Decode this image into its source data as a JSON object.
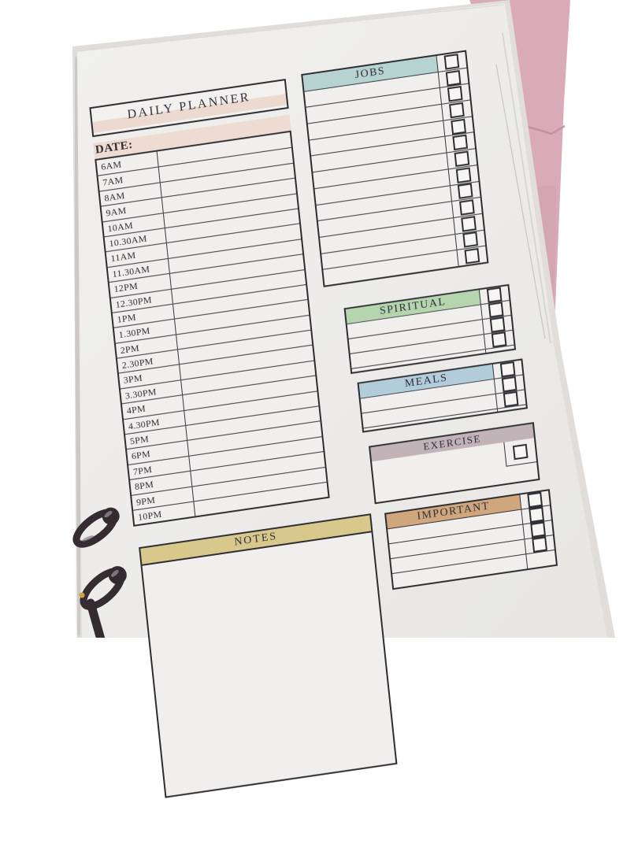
{
  "photo": {
    "background_color": "#ffffff",
    "paper_color": "#edecea",
    "binder_cover_color": "#d9abb8",
    "ring_color": "#332b30"
  },
  "page": {
    "title": "DAILY PLANNER",
    "title_band_color": "#ecd9d0",
    "date_label": "DATE:",
    "date_band_color": "#eedbd2",
    "time_slots": [
      "6AM",
      "7AM",
      "8AM",
      "9AM",
      "10AM",
      "10.30AM",
      "11AM",
      "11.30AM",
      "12PM",
      "12.30PM",
      "1PM",
      "1.30PM",
      "2PM",
      "2.30PM",
      "3PM",
      "3.30PM",
      "4PM",
      "4.30PM",
      "5PM",
      "6PM",
      "7PM",
      "8PM",
      "9PM",
      "10PM"
    ],
    "checklists": [
      {
        "id": "jobs",
        "label": "JOBS",
        "band_color": "#b6d3d1",
        "rows": 12,
        "checkbox_rows": 12,
        "header_checkbox": true
      },
      {
        "id": "spiritual",
        "label": "SPIRITUAL",
        "band_color": "#b5d5ae",
        "rows": 4,
        "checkbox_rows": 3,
        "header_checkbox": true
      },
      {
        "id": "meals",
        "label": "MEALS",
        "band_color": "#b2ccdb",
        "rows": 3,
        "checkbox_rows": 2,
        "header_checkbox": true
      },
      {
        "id": "important",
        "label": "IMPORTANT",
        "band_color": "#d0a67c",
        "rows": 4,
        "checkbox_rows": 3,
        "header_checkbox": true
      }
    ],
    "exercise": {
      "label": "EXERCISE",
      "band_color": "#c2b3b9",
      "checkbox_count": 1
    },
    "notes": {
      "label": "NOTES",
      "band_color": "#d8c88c"
    }
  }
}
